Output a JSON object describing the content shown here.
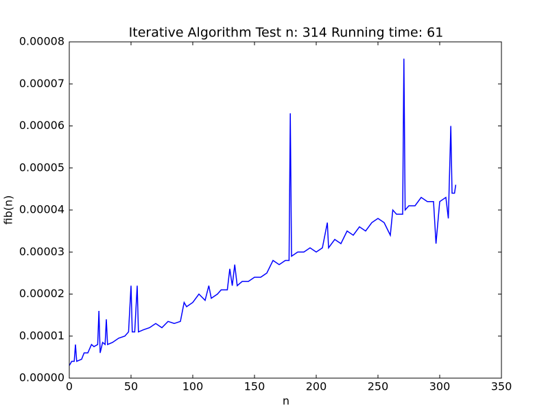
{
  "chart_data": {
    "type": "line",
    "title": "Iterative Algorithm Test n: 314 Running time: 61",
    "x_label": "n",
    "y_label": "fib(n)",
    "color": "#0000ff",
    "x": [
      0,
      2,
      4,
      5,
      6,
      10,
      12,
      15,
      18,
      20,
      23,
      24,
      25,
      27,
      29,
      30,
      31,
      35,
      40,
      45,
      48,
      50,
      51,
      53,
      55,
      56,
      60,
      65,
      70,
      75,
      80,
      85,
      90,
      93,
      95,
      100,
      105,
      110,
      113,
      115,
      120,
      123,
      128,
      130,
      132,
      134,
      136,
      140,
      145,
      150,
      155,
      160,
      165,
      170,
      175,
      178,
      179,
      180,
      185,
      190,
      195,
      200,
      205,
      209,
      210,
      215,
      220,
      225,
      230,
      235,
      240,
      245,
      250,
      255,
      260,
      262,
      265,
      270,
      271,
      272,
      275,
      280,
      285,
      290,
      295,
      297,
      300,
      305,
      307,
      309,
      310,
      312,
      313
    ],
    "values": [
      3e-06,
      4e-06,
      4e-06,
      8e-06,
      4e-06,
      4.5e-06,
      6e-06,
      6e-06,
      8e-06,
      7.5e-06,
      8e-06,
      1.6e-05,
      6e-06,
      8.5e-06,
      8e-06,
      1.4e-05,
      8e-06,
      8.5e-06,
      9.5e-06,
      1e-05,
      1.1e-05,
      2.2e-05,
      1.1e-05,
      1.1e-05,
      2.2e-05,
      1.1e-05,
      1.15e-05,
      1.2e-05,
      1.3e-05,
      1.2e-05,
      1.35e-05,
      1.3e-05,
      1.35e-05,
      1.8e-05,
      1.7e-05,
      1.8e-05,
      2e-05,
      1.85e-05,
      2.2e-05,
      1.9e-05,
      2e-05,
      2.1e-05,
      2.1e-05,
      2.6e-05,
      2.2e-05,
      2.7e-05,
      2.2e-05,
      2.3e-05,
      2.3e-05,
      2.4e-05,
      2.4e-05,
      2.5e-05,
      2.8e-05,
      2.7e-05,
      2.8e-05,
      2.8e-05,
      6.3e-05,
      2.9e-05,
      3e-05,
      3e-05,
      3.1e-05,
      3e-05,
      3.1e-05,
      3.7e-05,
      3.1e-05,
      3.3e-05,
      3.2e-05,
      3.5e-05,
      3.4e-05,
      3.6e-05,
      3.5e-05,
      3.7e-05,
      3.8e-05,
      3.7e-05,
      3.4e-05,
      4e-05,
      3.9e-05,
      3.9e-05,
      7.6e-05,
      4e-05,
      4.1e-05,
      4.1e-05,
      4.3e-05,
      4.2e-05,
      4.2e-05,
      3.2e-05,
      4.2e-05,
      4.3e-05,
      3.8e-05,
      6e-05,
      4.4e-05,
      4.4e-05,
      4.6e-05
    ],
    "xlim": [
      0,
      350
    ],
    "xticks": [
      0,
      50,
      100,
      150,
      200,
      250,
      300,
      350
    ],
    "ylim": [
      0,
      8e-05
    ],
    "yticks": [
      {
        "value": 0,
        "label": "0.00000"
      },
      {
        "value": 1e-05,
        "label": "0.00001"
      },
      {
        "value": 2e-05,
        "label": "0.00002"
      },
      {
        "value": 3e-05,
        "label": "0.00003"
      },
      {
        "value": 4e-05,
        "label": "0.00004"
      },
      {
        "value": 5e-05,
        "label": "0.00005"
      },
      {
        "value": 6e-05,
        "label": "0.00006"
      },
      {
        "value": 7e-05,
        "label": "0.00007"
      },
      {
        "value": 8e-05,
        "label": "0.00008"
      }
    ]
  }
}
